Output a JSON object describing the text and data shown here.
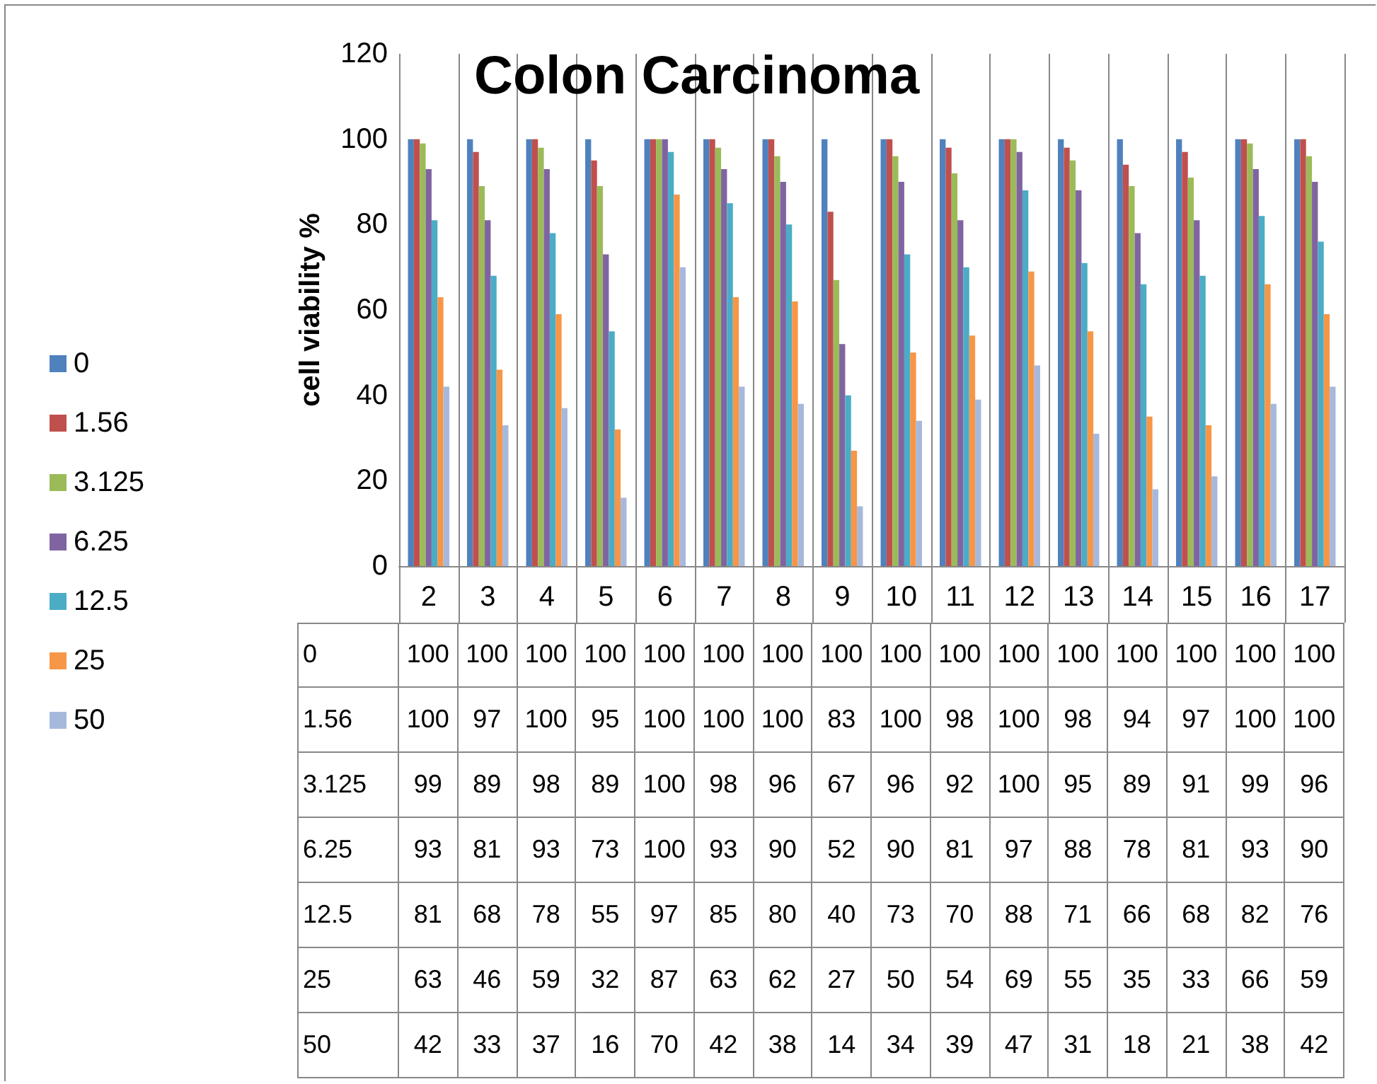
{
  "chart_data": {
    "type": "bar",
    "title": "Colon Carcinoma",
    "ylabel": "cell viability %",
    "categories": [
      "2",
      "3",
      "4",
      "5",
      "6",
      "7",
      "8",
      "9",
      "10",
      "11",
      "12",
      "13",
      "14",
      "15",
      "16",
      "17"
    ],
    "ylim": [
      0,
      120
    ],
    "yticks": [
      0,
      20,
      40,
      60,
      80,
      100,
      120
    ],
    "grid": "x",
    "legend": "left",
    "data_labels": true,
    "series": [
      {
        "name": "0",
        "color": "#4f81bd",
        "values": [
          100,
          100,
          100,
          100,
          100,
          100,
          100,
          100,
          100,
          100,
          100,
          100,
          100,
          100,
          100,
          100
        ]
      },
      {
        "name": "1.56",
        "color": "#c0504d",
        "values": [
          100,
          97,
          100,
          95,
          100,
          100,
          100,
          83,
          100,
          98,
          100,
          98,
          94,
          97,
          100,
          100
        ]
      },
      {
        "name": "3.125",
        "color": "#9bbb59",
        "values": [
          99,
          89,
          98,
          89,
          100,
          98,
          96,
          67,
          96,
          92,
          100,
          95,
          89,
          91,
          99,
          96
        ]
      },
      {
        "name": "6.25",
        "color": "#8064a2",
        "values": [
          93,
          81,
          93,
          73,
          100,
          93,
          90,
          52,
          90,
          81,
          97,
          88,
          78,
          81,
          93,
          90
        ]
      },
      {
        "name": "12.5",
        "color": "#4bacc6",
        "values": [
          81,
          68,
          78,
          55,
          97,
          85,
          80,
          40,
          73,
          70,
          88,
          71,
          66,
          68,
          82,
          76
        ]
      },
      {
        "name": "25",
        "color": "#f79646",
        "values": [
          63,
          46,
          59,
          32,
          87,
          63,
          62,
          27,
          50,
          54,
          69,
          55,
          35,
          33,
          66,
          59
        ]
      },
      {
        "name": "50",
        "color": "#a6b9dc",
        "values": [
          42,
          33,
          37,
          16,
          70,
          42,
          38,
          14,
          34,
          39,
          47,
          31,
          18,
          21,
          38,
          42
        ]
      }
    ]
  }
}
